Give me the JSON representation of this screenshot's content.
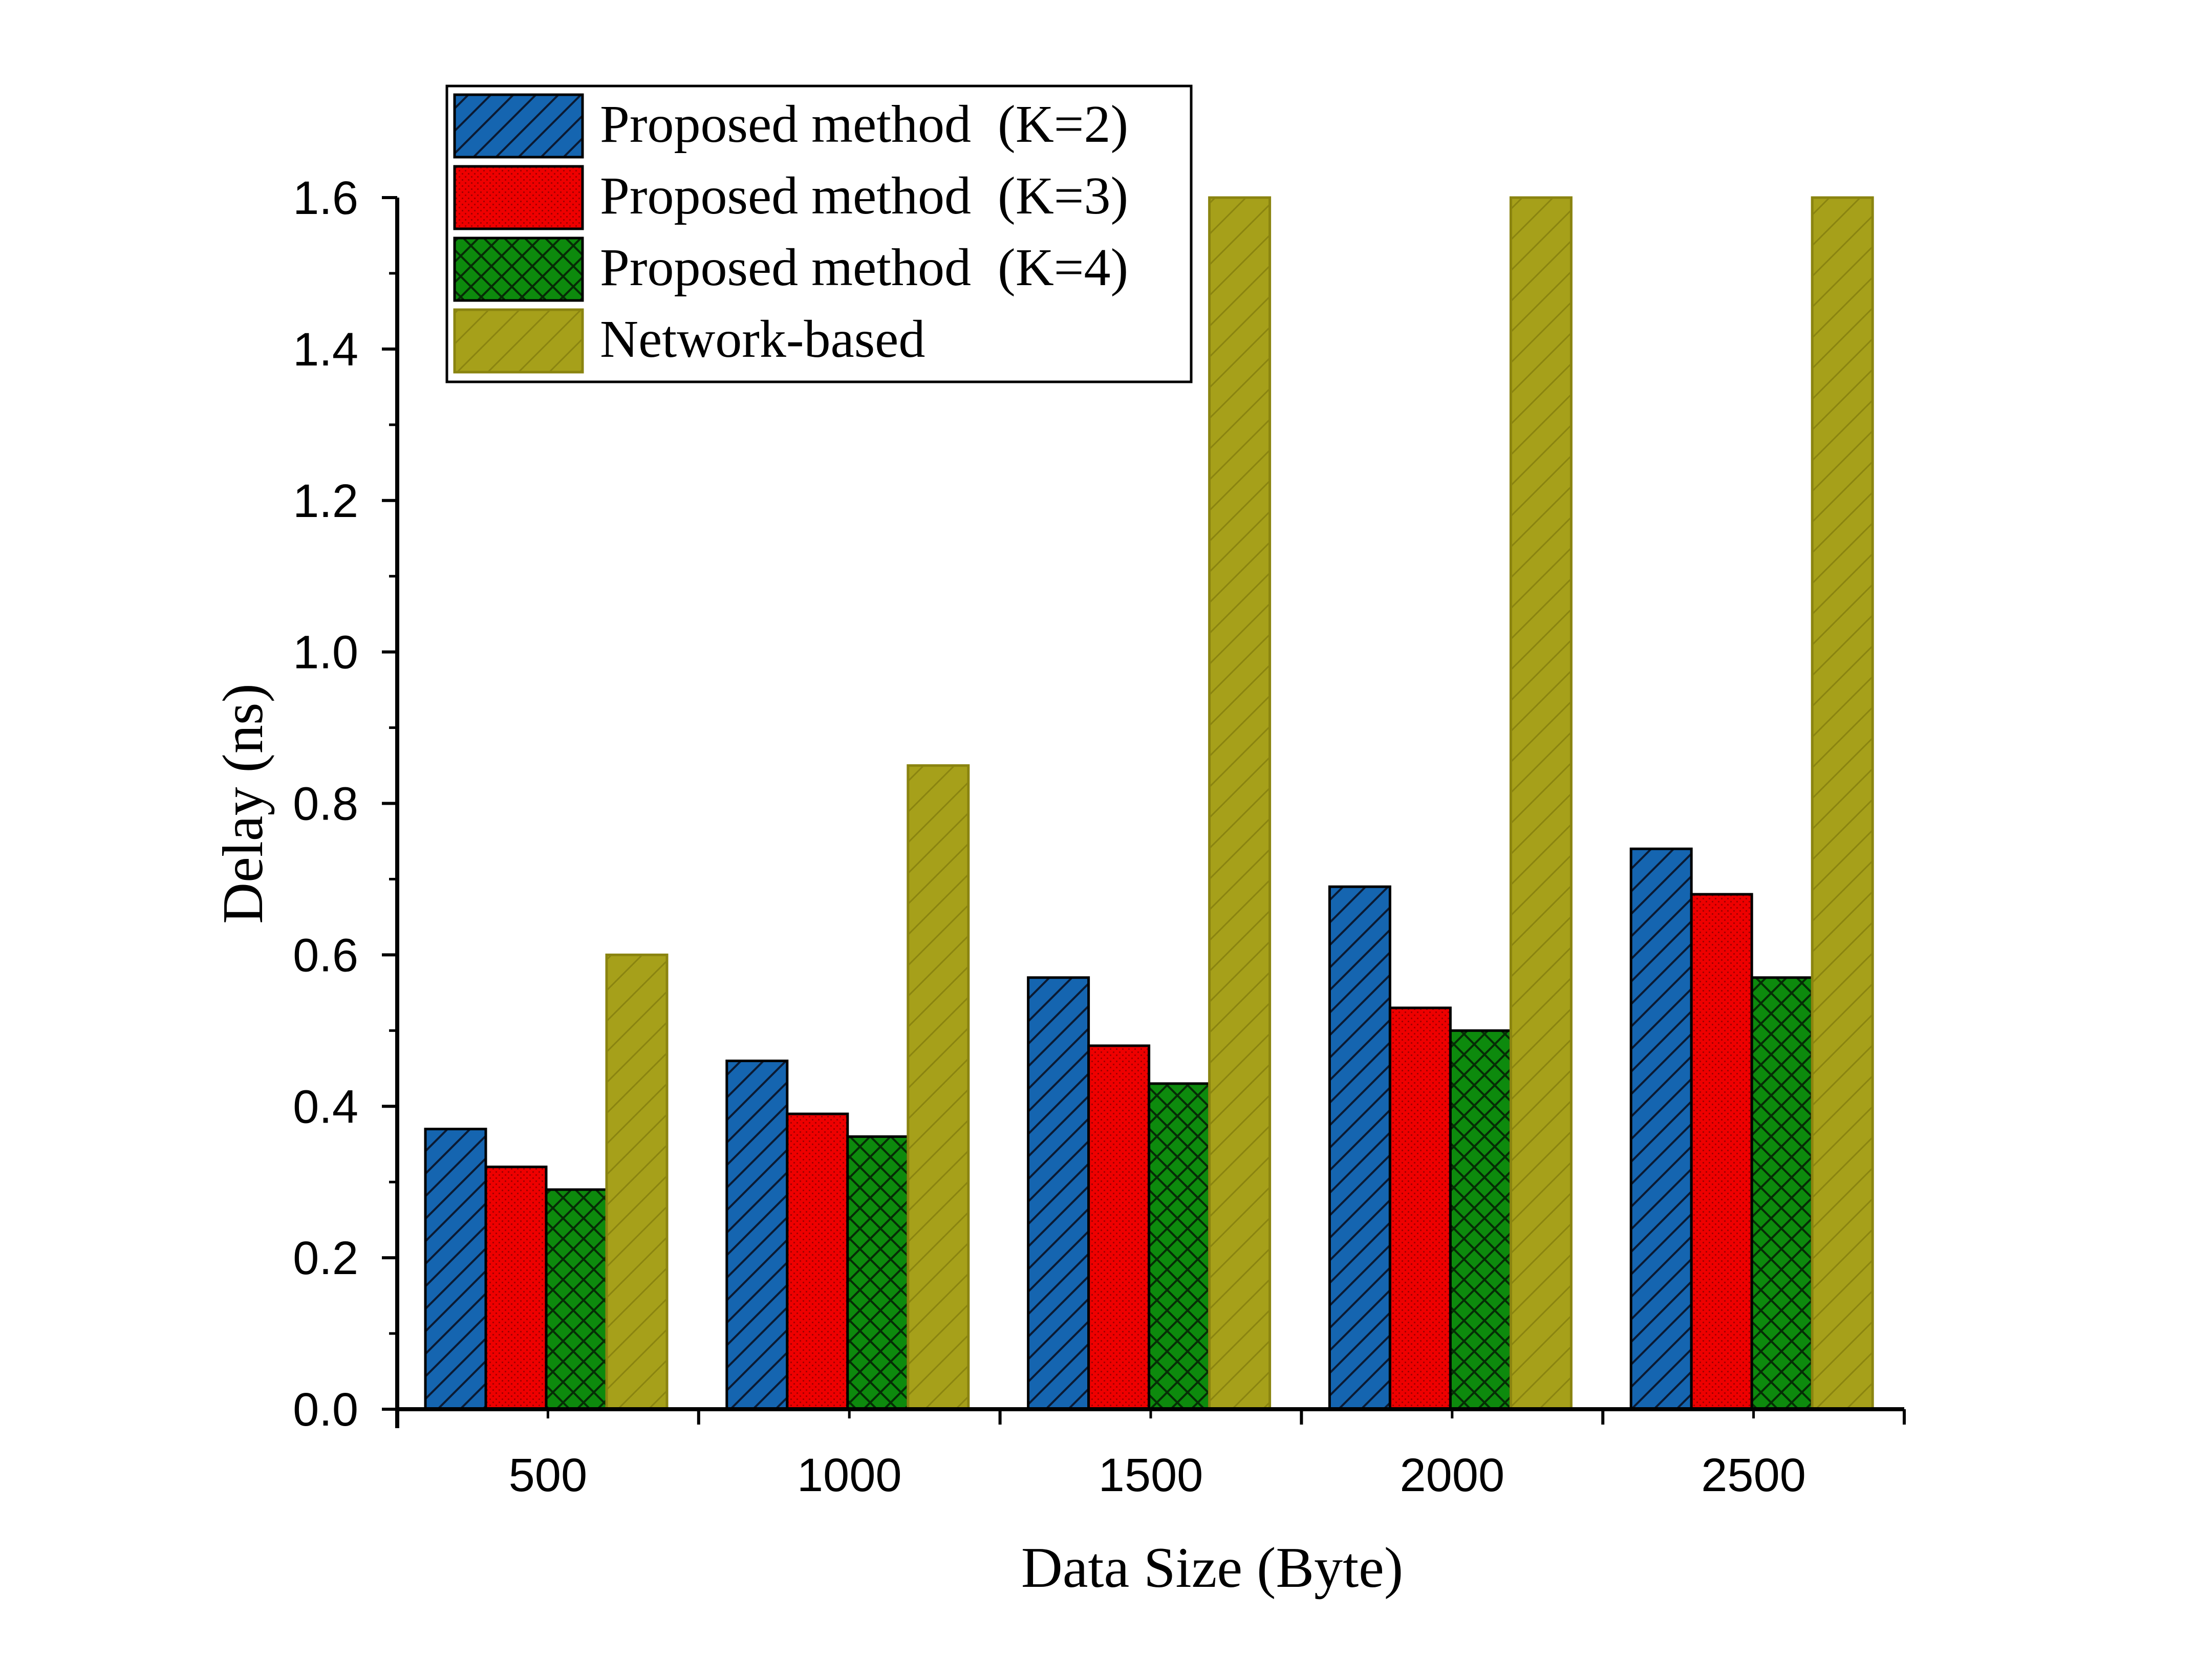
{
  "chart_data": {
    "type": "bar",
    "title": "",
    "xlabel": "Data Size (Byte)",
    "ylabel": "Delay (ns)",
    "ylim": [
      0,
      1.6
    ],
    "yticks": [
      "0.0",
      "0.2",
      "0.4",
      "0.6",
      "0.8",
      "1.0",
      "1.2",
      "1.4",
      "1.6"
    ],
    "categories": [
      "500",
      "1000",
      "1500",
      "2000",
      "2500"
    ],
    "legend_position": "top-left",
    "series": [
      {
        "name": "Proposed method  (K=2)",
        "color": "#1565b0",
        "pattern": "diagonal-hatch",
        "values": [
          0.37,
          0.46,
          0.57,
          0.69,
          0.74
        ]
      },
      {
        "name": "Proposed method  (K=3)",
        "color": "#ee0000",
        "pattern": "fine-dots",
        "values": [
          0.32,
          0.39,
          0.48,
          0.53,
          0.68
        ]
      },
      {
        "name": "Proposed method  (K=4)",
        "color": "#0d8a0d",
        "pattern": "crosshatch",
        "values": [
          0.29,
          0.36,
          0.43,
          0.5,
          0.57
        ]
      },
      {
        "name": "Network-based",
        "color": "#a6a01a",
        "pattern": "light-diagonal",
        "values": [
          0.6,
          0.85,
          1.6,
          1.6,
          1.6
        ]
      }
    ]
  }
}
